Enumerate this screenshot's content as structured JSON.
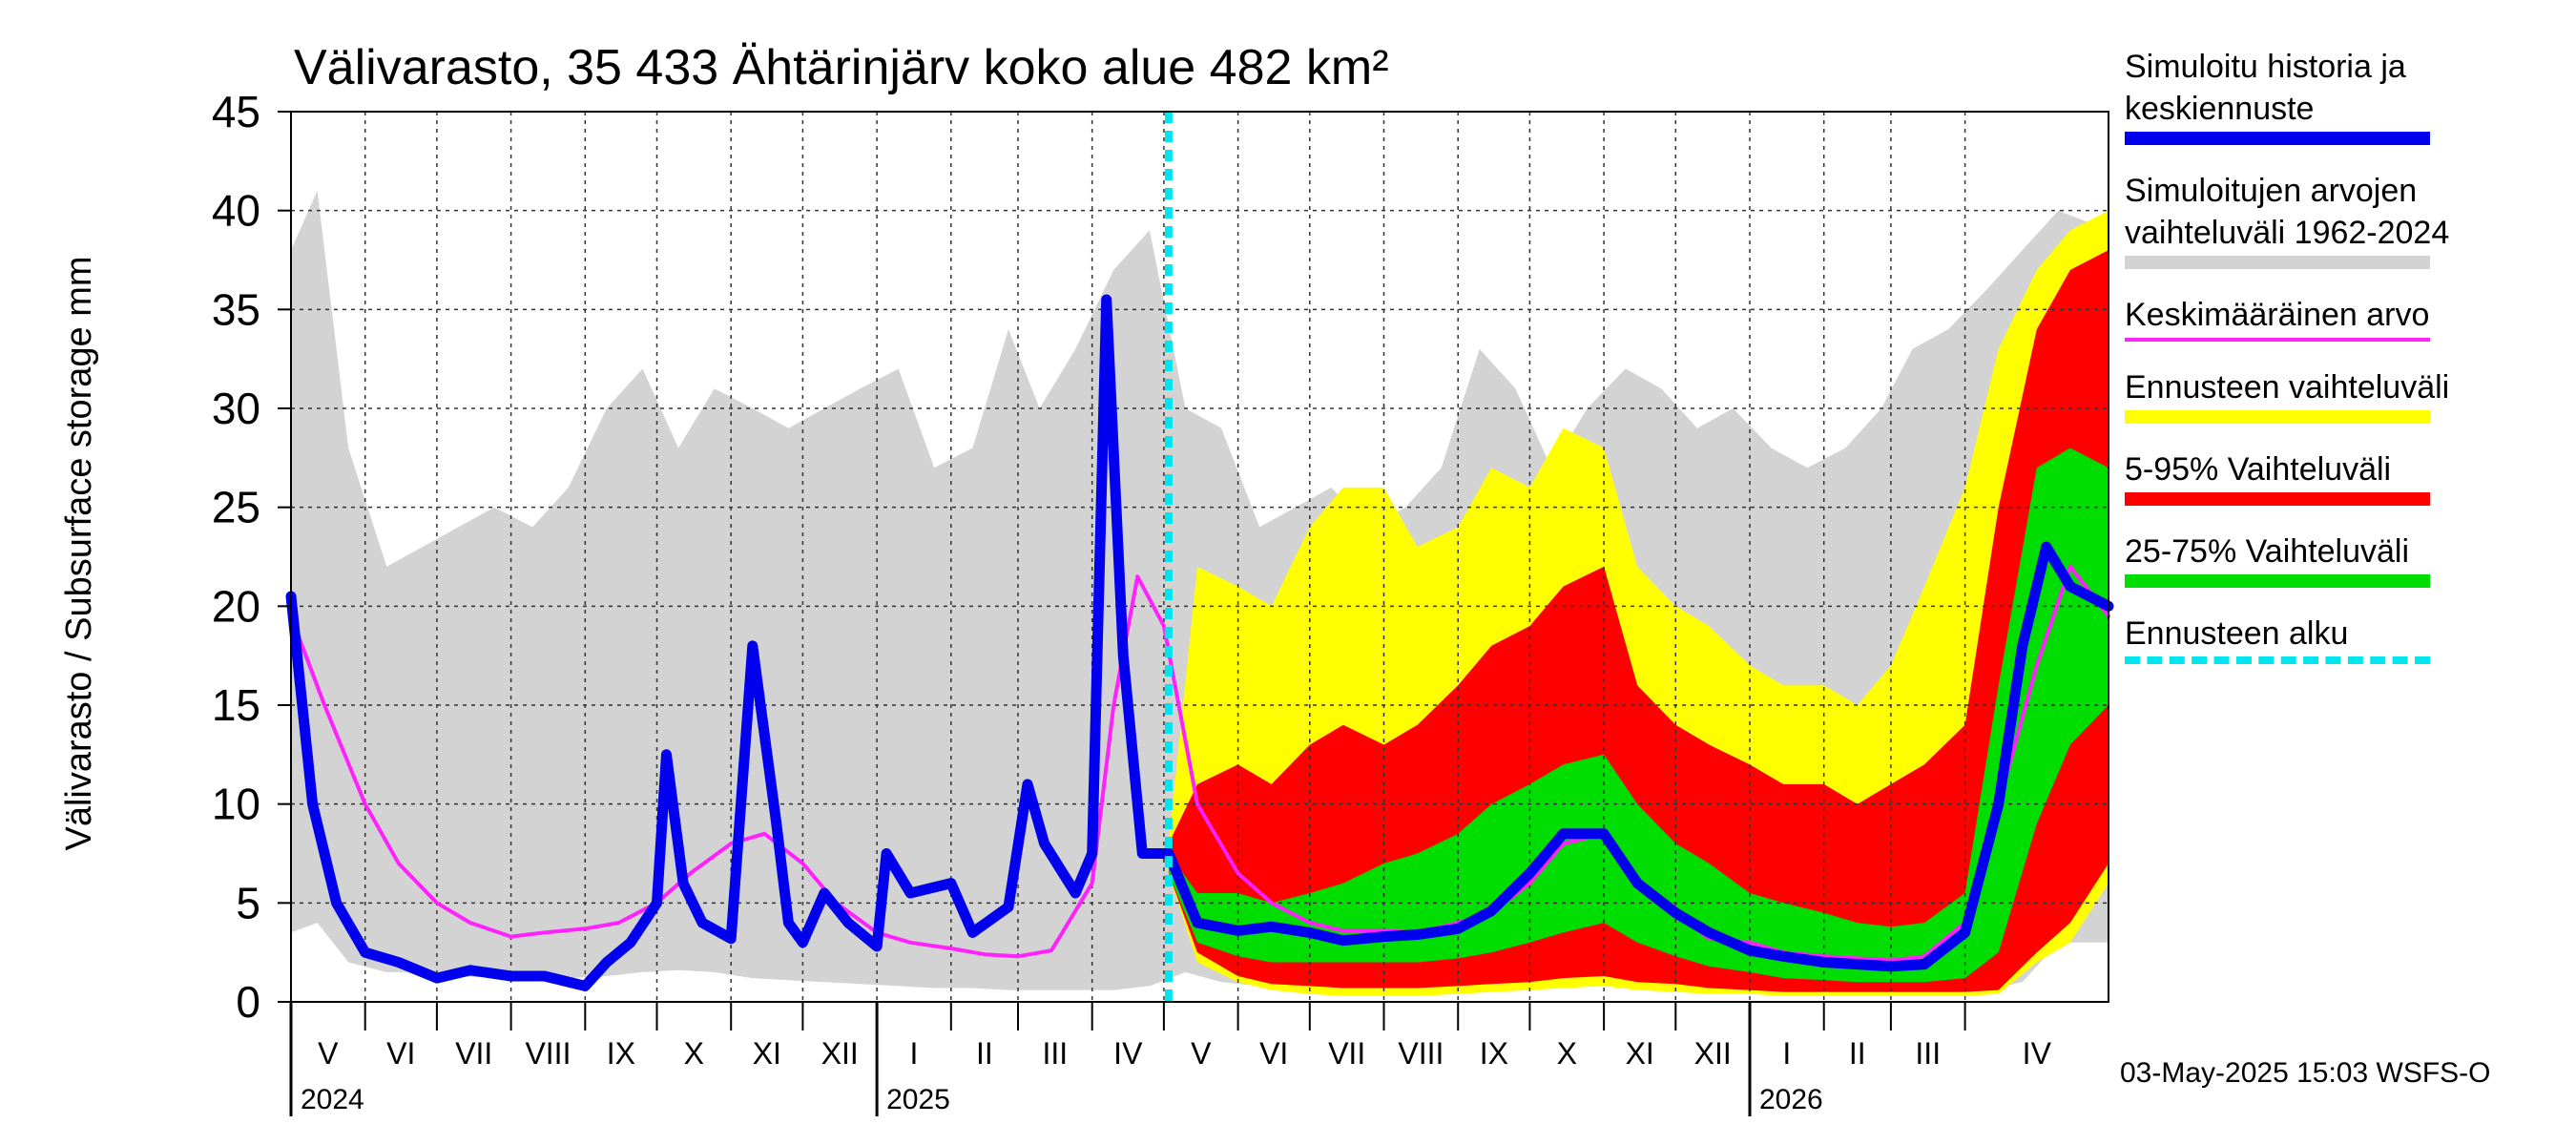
{
  "chart_data": {
    "type": "area",
    "title": "Välivarasto, 35 433 Ähtärinjärv koko alue 482 km²",
    "ylabel": "Välivarasto / Subsurface storage  mm",
    "ylim": [
      0,
      45
    ],
    "yticks": [
      0,
      5,
      10,
      15,
      20,
      25,
      30,
      35,
      40,
      45
    ],
    "xlim": [
      "2024-05-01",
      "2026-05-31"
    ],
    "forecast_start": "2025-05-03",
    "grid": true,
    "legend_position": "right",
    "months": [
      {
        "label": "V",
        "date": "2024-05-01"
      },
      {
        "label": "VI",
        "date": "2024-06-01"
      },
      {
        "label": "VII",
        "date": "2024-07-01"
      },
      {
        "label": "VIII",
        "date": "2024-08-01"
      },
      {
        "label": "IX",
        "date": "2024-09-01"
      },
      {
        "label": "X",
        "date": "2024-10-01"
      },
      {
        "label": "XI",
        "date": "2024-11-01"
      },
      {
        "label": "XII",
        "date": "2024-12-01"
      },
      {
        "label": "I",
        "date": "2025-01-01"
      },
      {
        "label": "II",
        "date": "2025-02-01"
      },
      {
        "label": "III",
        "date": "2025-03-01"
      },
      {
        "label": "IV",
        "date": "2025-04-01"
      },
      {
        "label": "V",
        "date": "2025-05-01"
      },
      {
        "label": "VI",
        "date": "2025-06-01"
      },
      {
        "label": "VII",
        "date": "2025-07-01"
      },
      {
        "label": "VIII",
        "date": "2025-08-01"
      },
      {
        "label": "IX",
        "date": "2025-09-01"
      },
      {
        "label": "X",
        "date": "2025-10-01"
      },
      {
        "label": "XI",
        "date": "2025-11-01"
      },
      {
        "label": "XII",
        "date": "2025-12-01"
      },
      {
        "label": "I",
        "date": "2026-01-01"
      },
      {
        "label": "II",
        "date": "2026-02-01"
      },
      {
        "label": "III",
        "date": "2026-03-01"
      },
      {
        "label": "IV",
        "date": "2026-04-01"
      }
    ],
    "years": [
      {
        "label": "2024",
        "date": "2024-05-01"
      },
      {
        "label": "2025",
        "date": "2025-01-01"
      },
      {
        "label": "2026",
        "date": "2026-01-01"
      }
    ],
    "series": [
      {
        "name": "Simuloitujen arvojen vaihteluväli 1962-2024",
        "kind": "band",
        "color": "#d3d3d3",
        "x": [
          "2024-05-01",
          "2024-05-12",
          "2024-05-25",
          "2024-06-10",
          "2024-06-25",
          "2024-07-10",
          "2024-07-25",
          "2024-08-10",
          "2024-08-25",
          "2024-09-10",
          "2024-09-25",
          "2024-10-10",
          "2024-10-25",
          "2024-11-10",
          "2024-11-25",
          "2024-12-10",
          "2024-12-25",
          "2025-01-10",
          "2025-01-25",
          "2025-02-10",
          "2025-02-25",
          "2025-03-10",
          "2025-03-25",
          "2025-04-10",
          "2025-04-25",
          "2025-05-10",
          "2025-05-25",
          "2025-06-10",
          "2025-06-25",
          "2025-07-10",
          "2025-07-25",
          "2025-08-10",
          "2025-08-25",
          "2025-09-10",
          "2025-09-25",
          "2025-10-10",
          "2025-10-25",
          "2025-11-10",
          "2025-11-25",
          "2025-12-10",
          "2025-12-25",
          "2026-01-10",
          "2026-01-25",
          "2026-02-10",
          "2026-02-25",
          "2026-03-10",
          "2026-03-25",
          "2026-04-10",
          "2026-04-25",
          "2026-05-10",
          "2026-05-31"
        ],
        "low": [
          3.5,
          4,
          2,
          1.5,
          1.5,
          1.3,
          1.2,
          1.2,
          1.2,
          1.3,
          1.5,
          1.6,
          1.5,
          1.2,
          1.1,
          1,
          0.9,
          0.8,
          0.7,
          0.7,
          0.6,
          0.6,
          0.6,
          0.6,
          0.8,
          1.5,
          1,
          0.8,
          0.7,
          0.7,
          0.7,
          0.7,
          0.7,
          0.8,
          1,
          1.2,
          1.3,
          1.2,
          1.1,
          1,
          0.9,
          0.8,
          0.7,
          0.7,
          0.6,
          0.6,
          0.6,
          0.6,
          1,
          3,
          3
        ],
        "high": [
          38,
          41,
          28,
          22,
          23,
          24,
          25,
          24,
          26,
          30,
          32,
          28,
          31,
          30,
          29,
          30,
          31,
          32,
          27,
          28,
          34,
          30,
          33,
          37,
          39,
          30,
          29,
          24,
          25,
          26,
          24,
          25,
          27,
          33,
          31,
          27,
          30,
          32,
          31,
          29,
          30,
          28,
          27,
          28,
          30,
          33,
          34,
          36,
          38,
          40,
          39
        ]
      },
      {
        "name": "Ennusteen vaihteluväli",
        "kind": "band",
        "color": "#ffff00",
        "x": [
          "2025-05-03",
          "2025-05-15",
          "2025-06-01",
          "2025-06-15",
          "2025-07-01",
          "2025-07-15",
          "2025-08-01",
          "2025-08-15",
          "2025-09-01",
          "2025-09-15",
          "2025-10-01",
          "2025-10-15",
          "2025-11-01",
          "2025-11-15",
          "2025-12-01",
          "2025-12-15",
          "2026-01-01",
          "2026-01-15",
          "2026-02-01",
          "2026-02-15",
          "2026-03-01",
          "2026-03-15",
          "2026-04-01",
          "2026-04-15",
          "2026-05-01",
          "2026-05-15",
          "2026-05-31"
        ],
        "low": [
          6.5,
          2,
          1,
          0.6,
          0.4,
          0.3,
          0.3,
          0.3,
          0.4,
          0.5,
          0.6,
          0.7,
          0.8,
          0.6,
          0.5,
          0.4,
          0.4,
          0.3,
          0.3,
          0.3,
          0.3,
          0.3,
          0.3,
          0.4,
          2,
          3,
          6
        ],
        "high": [
          8,
          22,
          21,
          20,
          24,
          26,
          26,
          23,
          24,
          27,
          26,
          29,
          28,
          22,
          20,
          19,
          17,
          16,
          16,
          15,
          17,
          21,
          26,
          33,
          37,
          39,
          40
        ]
      },
      {
        "name": "5-95% Vaihteluväli",
        "kind": "band",
        "color": "#ff0000",
        "x": [
          "2025-05-03",
          "2025-05-15",
          "2025-06-01",
          "2025-06-15",
          "2025-07-01",
          "2025-07-15",
          "2025-08-01",
          "2025-08-15",
          "2025-09-01",
          "2025-09-15",
          "2025-10-01",
          "2025-10-15",
          "2025-11-01",
          "2025-11-15",
          "2025-12-01",
          "2025-12-15",
          "2026-01-01",
          "2026-01-15",
          "2026-02-01",
          "2026-02-15",
          "2026-03-01",
          "2026-03-15",
          "2026-04-01",
          "2026-04-15",
          "2026-05-01",
          "2026-05-15",
          "2026-05-31"
        ],
        "low": [
          6.5,
          2.5,
          1.3,
          0.9,
          0.8,
          0.7,
          0.7,
          0.7,
          0.8,
          0.9,
          1,
          1.2,
          1.3,
          1,
          0.9,
          0.7,
          0.6,
          0.5,
          0.5,
          0.5,
          0.5,
          0.5,
          0.5,
          0.6,
          2.5,
          4,
          7
        ],
        "high": [
          8,
          11,
          12,
          11,
          13,
          14,
          13,
          14,
          16,
          18,
          19,
          21,
          22,
          16,
          14,
          13,
          12,
          11,
          11,
          10,
          11,
          12,
          14,
          25,
          34,
          37,
          38
        ]
      },
      {
        "name": "25-75% Vaihteluväli",
        "kind": "band",
        "color": "#00dd00",
        "x": [
          "2025-05-03",
          "2025-05-15",
          "2025-06-01",
          "2025-06-15",
          "2025-07-01",
          "2025-07-15",
          "2025-08-01",
          "2025-08-15",
          "2025-09-01",
          "2025-09-15",
          "2025-10-01",
          "2025-10-15",
          "2025-11-01",
          "2025-11-15",
          "2025-12-01",
          "2025-12-15",
          "2026-01-01",
          "2026-01-15",
          "2026-02-01",
          "2026-02-15",
          "2026-03-01",
          "2026-03-15",
          "2026-04-01",
          "2026-04-15",
          "2026-05-01",
          "2026-05-15",
          "2026-05-31"
        ],
        "low": [
          6.5,
          3,
          2.3,
          2,
          2,
          2,
          2,
          2,
          2.2,
          2.5,
          3,
          3.5,
          4,
          3,
          2.3,
          1.8,
          1.5,
          1.2,
          1.1,
          1,
          1,
          1,
          1.2,
          2.5,
          9,
          13,
          15
        ],
        "high": [
          7.5,
          5.5,
          5.5,
          5,
          5.5,
          6,
          7,
          7.5,
          8.5,
          10,
          11,
          12,
          12.5,
          10,
          8,
          7,
          5.5,
          5,
          4.5,
          4,
          3.8,
          4,
          5.5,
          16,
          27,
          28,
          27
        ]
      },
      {
        "name": "Keskimääräinen arvo",
        "kind": "line",
        "color": "#ff22ff",
        "x": [
          "2024-05-01",
          "2024-05-15",
          "2024-06-01",
          "2024-06-15",
          "2024-07-01",
          "2024-07-15",
          "2024-08-01",
          "2024-08-15",
          "2024-09-01",
          "2024-09-15",
          "2024-10-01",
          "2024-10-15",
          "2024-11-01",
          "2024-11-15",
          "2024-12-01",
          "2024-12-15",
          "2025-01-01",
          "2025-01-15",
          "2025-02-01",
          "2025-02-15",
          "2025-03-01",
          "2025-03-15",
          "2025-04-01",
          "2025-04-10",
          "2025-04-20",
          "2025-05-01",
          "2025-05-15",
          "2025-06-01",
          "2025-06-15",
          "2025-07-01",
          "2025-07-15",
          "2025-08-01",
          "2025-08-15",
          "2025-09-01",
          "2025-09-15",
          "2025-10-01",
          "2025-10-15",
          "2025-11-01",
          "2025-11-15",
          "2025-12-01",
          "2025-12-15",
          "2026-01-01",
          "2026-01-15",
          "2026-02-01",
          "2026-02-15",
          "2026-03-01",
          "2026-03-15",
          "2026-04-01",
          "2026-04-15",
          "2026-05-01",
          "2026-05-15",
          "2026-05-31"
        ],
        "y": [
          19.5,
          15,
          10,
          7,
          5,
          4,
          3.3,
          3.5,
          3.7,
          4,
          5,
          6.5,
          8,
          8.5,
          7,
          5,
          3.5,
          3,
          2.7,
          2.4,
          2.3,
          2.6,
          6,
          15,
          21.5,
          19,
          10,
          6.5,
          5,
          4,
          3.6,
          3.6,
          3.5,
          4,
          4.5,
          6,
          8,
          8.5,
          6,
          4.5,
          3.2,
          3,
          2.5,
          2.3,
          2.2,
          2.1,
          2.3,
          4,
          10,
          17,
          22,
          19.5
        ]
      },
      {
        "name": "Simuloitu historia ja keskiennuste",
        "kind": "line",
        "color": "#0000ee",
        "x": [
          "2024-05-01",
          "2024-05-10",
          "2024-05-20",
          "2024-06-01",
          "2024-06-15",
          "2024-07-01",
          "2024-07-15",
          "2024-08-01",
          "2024-08-15",
          "2024-09-01",
          "2024-09-10",
          "2024-09-20",
          "2024-10-01",
          "2024-10-05",
          "2024-10-12",
          "2024-10-20",
          "2024-11-01",
          "2024-11-10",
          "2024-11-20",
          "2024-11-25",
          "2024-12-01",
          "2024-12-10",
          "2024-12-20",
          "2025-01-01",
          "2025-01-05",
          "2025-01-15",
          "2025-02-01",
          "2025-02-10",
          "2025-02-25",
          "2025-03-05",
          "2025-03-12",
          "2025-03-25",
          "2025-04-01",
          "2025-04-07",
          "2025-04-14",
          "2025-04-22",
          "2025-05-03",
          "2025-05-15",
          "2025-06-01",
          "2025-06-15",
          "2025-07-01",
          "2025-07-15",
          "2025-08-01",
          "2025-08-15",
          "2025-09-01",
          "2025-09-15",
          "2025-10-01",
          "2025-10-15",
          "2025-11-01",
          "2025-11-15",
          "2025-12-01",
          "2025-12-15",
          "2026-01-01",
          "2026-01-15",
          "2026-02-01",
          "2026-02-15",
          "2026-03-01",
          "2026-03-15",
          "2026-04-01",
          "2026-04-15",
          "2026-04-25",
          "2026-05-05",
          "2026-05-15",
          "2026-05-31"
        ],
        "y": [
          20.5,
          10,
          5,
          2.5,
          2,
          1.2,
          1.6,
          1.3,
          1.3,
          0.8,
          2,
          3,
          5,
          12.5,
          6,
          4,
          3.2,
          18,
          9,
          4,
          3,
          5.5,
          4,
          2.8,
          7.5,
          5.5,
          6,
          3.5,
          4.8,
          11,
          8,
          5.5,
          7.5,
          35.5,
          17.5,
          7.5,
          7.5,
          4,
          3.6,
          3.8,
          3.5,
          3.1,
          3.3,
          3.4,
          3.7,
          4.6,
          6.5,
          8.5,
          8.5,
          6,
          4.5,
          3.5,
          2.6,
          2.3,
          2,
          1.9,
          1.8,
          1.9,
          3.5,
          10,
          18,
          23,
          21,
          20
        ]
      },
      {
        "name": "Ennusteen alku",
        "kind": "vline",
        "color": "#00e5ee",
        "x": "2025-05-03"
      }
    ],
    "timestamp": "03-May-2025 15:03 WSFS-O"
  },
  "legend": [
    {
      "label": "Simuloitu historia ja\nkeskiennuste",
      "color": "#0000ee",
      "style": "thick"
    },
    {
      "label": "Simuloitujen arvojen\nvaihteluväli 1962-2024",
      "color": "#d3d3d3",
      "style": "thick"
    },
    {
      "label": "Keskimääräinen arvo",
      "color": "#ff22ff",
      "style": "thin"
    },
    {
      "label": "Ennusteen vaihteluväli",
      "color": "#ffff00",
      "style": "thick"
    },
    {
      "label": "5-95% Vaihteluväli",
      "color": "#ff0000",
      "style": "thick"
    },
    {
      "label": "25-75% Vaihteluväli",
      "color": "#00dd00",
      "style": "thick"
    },
    {
      "label": "Ennusteen alku",
      "color": "#00e5ee",
      "style": "dashed"
    }
  ]
}
